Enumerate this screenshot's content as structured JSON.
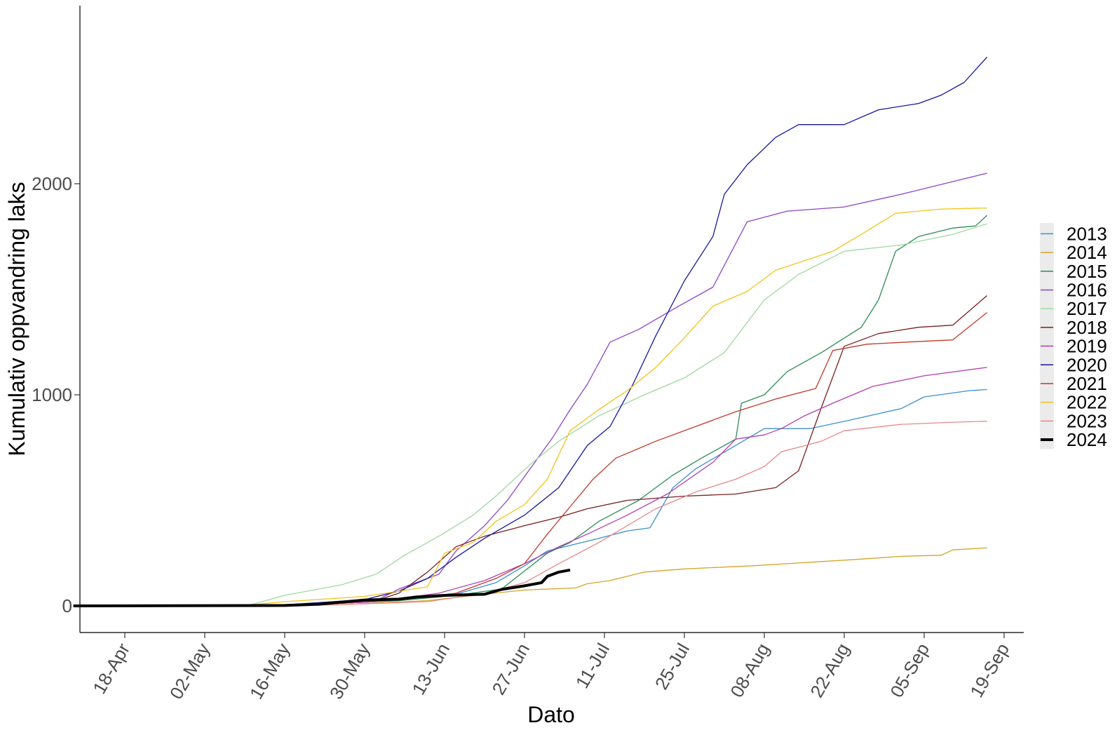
{
  "chart_data": {
    "type": "line",
    "xlabel": "Dato",
    "ylabel": "Kumulativ oppvandring laks",
    "x_tick_labels": [
      "18-Apr",
      "02-May",
      "16-May",
      "30-May",
      "13-Jun",
      "27-Jun",
      "11-Jul",
      "25-Jul",
      "08-Aug",
      "22-Aug",
      "05-Sep",
      "19-Sep"
    ],
    "x_tick_dates": [
      "04-18",
      "05-02",
      "05-16",
      "05-30",
      "06-13",
      "06-27",
      "07-11",
      "07-25",
      "08-08",
      "08-22",
      "09-05",
      "09-19"
    ],
    "y_ticks": [
      0,
      1000,
      2000
    ],
    "xlim": [
      "04-09",
      "09-19"
    ],
    "ylim": [
      -130,
      2850
    ],
    "grid": false,
    "legend_position": "right",
    "series": [
      {
        "name": "2013",
        "color": "#3b8fd0",
        "width": 1.3,
        "points": [
          [
            "04-09",
            0
          ],
          [
            "05-20",
            5
          ],
          [
            "06-05",
            25
          ],
          [
            "06-15",
            55
          ],
          [
            "06-22",
            110
          ],
          [
            "06-27",
            190
          ],
          [
            "07-01",
            260
          ],
          [
            "07-10",
            320
          ],
          [
            "07-15",
            355
          ],
          [
            "07-19",
            370
          ],
          [
            "07-23",
            560
          ],
          [
            "07-27",
            650
          ],
          [
            "08-03",
            760
          ],
          [
            "08-08",
            840
          ],
          [
            "08-16",
            840
          ],
          [
            "08-23",
            880
          ],
          [
            "09-01",
            935
          ],
          [
            "09-05",
            990
          ],
          [
            "09-13",
            1020
          ],
          [
            "09-16",
            1025
          ]
        ]
      },
      {
        "name": "2014",
        "color": "#d4a52c",
        "width": 1.3,
        "points": [
          [
            "04-09",
            0
          ],
          [
            "05-25",
            5
          ],
          [
            "06-10",
            25
          ],
          [
            "06-20",
            55
          ],
          [
            "06-27",
            75
          ],
          [
            "07-06",
            85
          ],
          [
            "07-08",
            105
          ],
          [
            "07-12",
            120
          ],
          [
            "07-18",
            160
          ],
          [
            "07-25",
            175
          ],
          [
            "08-06",
            190
          ],
          [
            "08-15",
            205
          ],
          [
            "08-24",
            220
          ],
          [
            "09-01",
            235
          ],
          [
            "09-08",
            240
          ],
          [
            "09-10",
            265
          ],
          [
            "09-16",
            275
          ]
        ]
      },
      {
        "name": "2015",
        "color": "#2e8b57",
        "width": 1.3,
        "points": [
          [
            "04-09",
            0
          ],
          [
            "05-20",
            5
          ],
          [
            "06-05",
            25
          ],
          [
            "06-15",
            50
          ],
          [
            "06-23",
            80
          ],
          [
            "07-01",
            250
          ],
          [
            "07-05",
            300
          ],
          [
            "07-10",
            400
          ],
          [
            "07-17",
            500
          ],
          [
            "07-20",
            560
          ],
          [
            "07-23",
            620
          ],
          [
            "07-28",
            700
          ],
          [
            "08-03",
            790
          ],
          [
            "08-04",
            960
          ],
          [
            "08-08",
            1000
          ],
          [
            "08-12",
            1110
          ],
          [
            "08-18",
            1200
          ],
          [
            "08-25",
            1320
          ],
          [
            "08-28",
            1450
          ],
          [
            "08-31",
            1680
          ],
          [
            "09-04",
            1750
          ],
          [
            "09-10",
            1790
          ],
          [
            "09-14",
            1800
          ],
          [
            "09-16",
            1850
          ]
        ]
      },
      {
        "name": "2016",
        "color": "#8e44c8",
        "width": 1.3,
        "points": [
          [
            "04-09",
            0
          ],
          [
            "05-20",
            5
          ],
          [
            "06-01",
            25
          ],
          [
            "06-05",
            80
          ],
          [
            "06-12",
            150
          ],
          [
            "06-15",
            260
          ],
          [
            "06-20",
            380
          ],
          [
            "06-24",
            500
          ],
          [
            "06-28",
            650
          ],
          [
            "07-02",
            800
          ],
          [
            "07-05",
            930
          ],
          [
            "07-08",
            1050
          ],
          [
            "07-12",
            1250
          ],
          [
            "07-17",
            1310
          ],
          [
            "07-24",
            1420
          ],
          [
            "07-30",
            1510
          ],
          [
            "08-05",
            1820
          ],
          [
            "08-12",
            1870
          ],
          [
            "08-22",
            1890
          ],
          [
            "09-01",
            1950
          ],
          [
            "09-10",
            2010
          ],
          [
            "09-16",
            2050
          ]
        ]
      },
      {
        "name": "2017",
        "color": "#9ed99e",
        "width": 1.3,
        "points": [
          [
            "04-09",
            0
          ],
          [
            "05-10",
            5
          ],
          [
            "05-16",
            50
          ],
          [
            "05-26",
            100
          ],
          [
            "06-01",
            150
          ],
          [
            "06-06",
            240
          ],
          [
            "06-12",
            330
          ],
          [
            "06-18",
            430
          ],
          [
            "06-22",
            520
          ],
          [
            "06-28",
            670
          ],
          [
            "07-03",
            780
          ],
          [
            "07-10",
            900
          ],
          [
            "07-18",
            1000
          ],
          [
            "07-25",
            1080
          ],
          [
            "08-01",
            1200
          ],
          [
            "08-08",
            1450
          ],
          [
            "08-14",
            1570
          ],
          [
            "08-22",
            1680
          ],
          [
            "09-01",
            1710
          ],
          [
            "09-10",
            1760
          ],
          [
            "09-16",
            1810
          ]
        ]
      },
      {
        "name": "2018",
        "color": "#7a1f1f",
        "width": 1.3,
        "points": [
          [
            "04-09",
            0
          ],
          [
            "05-20",
            5
          ],
          [
            "06-01",
            25
          ],
          [
            "06-05",
            60
          ],
          [
            "06-10",
            160
          ],
          [
            "06-15",
            280
          ],
          [
            "06-20",
            330
          ],
          [
            "06-27",
            380
          ],
          [
            "07-03",
            420
          ],
          [
            "07-08",
            460
          ],
          [
            "07-15",
            500
          ],
          [
            "07-25",
            520
          ],
          [
            "08-03",
            530
          ],
          [
            "08-10",
            560
          ],
          [
            "08-14",
            640
          ],
          [
            "08-18",
            940
          ],
          [
            "08-22",
            1230
          ],
          [
            "08-28",
            1290
          ],
          [
            "09-04",
            1320
          ],
          [
            "09-10",
            1330
          ],
          [
            "09-16",
            1470
          ]
        ]
      },
      {
        "name": "2019",
        "color": "#b23fb0",
        "width": 1.3,
        "points": [
          [
            "04-09",
            0
          ],
          [
            "05-20",
            5
          ],
          [
            "06-01",
            20
          ],
          [
            "06-12",
            60
          ],
          [
            "06-20",
            120
          ],
          [
            "06-27",
            200
          ],
          [
            "07-03",
            280
          ],
          [
            "07-08",
            340
          ],
          [
            "07-15",
            430
          ],
          [
            "07-22",
            530
          ],
          [
            "07-30",
            680
          ],
          [
            "08-03",
            790
          ],
          [
            "08-08",
            810
          ],
          [
            "08-11",
            840
          ],
          [
            "08-15",
            900
          ],
          [
            "08-20",
            960
          ],
          [
            "08-27",
            1040
          ],
          [
            "09-05",
            1090
          ],
          [
            "09-16",
            1130
          ]
        ]
      },
      {
        "name": "2020",
        "color": "#16169e",
        "width": 1.3,
        "points": [
          [
            "04-09",
            0
          ],
          [
            "05-16",
            5
          ],
          [
            "05-30",
            30
          ],
          [
            "06-05",
            70
          ],
          [
            "06-10",
            130
          ],
          [
            "06-15",
            230
          ],
          [
            "06-20",
            320
          ],
          [
            "06-27",
            430
          ],
          [
            "07-03",
            560
          ],
          [
            "07-08",
            760
          ],
          [
            "07-12",
            850
          ],
          [
            "07-16",
            1050
          ],
          [
            "07-20",
            1280
          ],
          [
            "07-25",
            1540
          ],
          [
            "07-30",
            1750
          ],
          [
            "08-01",
            1950
          ],
          [
            "08-05",
            2090
          ],
          [
            "08-10",
            2220
          ],
          [
            "08-14",
            2280
          ],
          [
            "08-22",
            2280
          ],
          [
            "08-28",
            2350
          ],
          [
            "09-04",
            2380
          ],
          [
            "09-08",
            2420
          ],
          [
            "09-12",
            2480
          ],
          [
            "09-16",
            2600
          ]
        ]
      },
      {
        "name": "2021",
        "color": "#c0392b",
        "width": 1.3,
        "points": [
          [
            "04-09",
            0
          ],
          [
            "05-20",
            5
          ],
          [
            "06-05",
            30
          ],
          [
            "06-15",
            60
          ],
          [
            "06-22",
            130
          ],
          [
            "06-27",
            200
          ],
          [
            "07-01",
            340
          ],
          [
            "07-05",
            470
          ],
          [
            "07-09",
            600
          ],
          [
            "07-13",
            700
          ],
          [
            "07-20",
            780
          ],
          [
            "07-27",
            850
          ],
          [
            "08-03",
            920
          ],
          [
            "08-10",
            980
          ],
          [
            "08-17",
            1030
          ],
          [
            "08-20",
            1210
          ],
          [
            "08-26",
            1240
          ],
          [
            "09-02",
            1250
          ],
          [
            "09-10",
            1260
          ],
          [
            "09-16",
            1390
          ]
        ]
      },
      {
        "name": "2022",
        "color": "#f2c318",
        "width": 1.3,
        "points": [
          [
            "04-09",
            0
          ],
          [
            "05-10",
            5
          ],
          [
            "05-16",
            20
          ],
          [
            "05-30",
            45
          ],
          [
            "06-10",
            90
          ],
          [
            "06-13",
            250
          ],
          [
            "06-18",
            300
          ],
          [
            "06-22",
            400
          ],
          [
            "06-27",
            480
          ],
          [
            "07-01",
            600
          ],
          [
            "07-05",
            830
          ],
          [
            "07-10",
            930
          ],
          [
            "07-15",
            1020
          ],
          [
            "07-20",
            1130
          ],
          [
            "07-25",
            1270
          ],
          [
            "07-30",
            1420
          ],
          [
            "08-05",
            1490
          ],
          [
            "08-10",
            1590
          ],
          [
            "08-20",
            1680
          ],
          [
            "08-25",
            1760
          ],
          [
            "08-31",
            1860
          ],
          [
            "09-08",
            1880
          ],
          [
            "09-16",
            1885
          ]
        ]
      },
      {
        "name": "2023",
        "color": "#e6888a",
        "width": 1.3,
        "points": [
          [
            "04-09",
            0
          ],
          [
            "05-25",
            5
          ],
          [
            "06-10",
            20
          ],
          [
            "06-20",
            60
          ],
          [
            "06-27",
            110
          ],
          [
            "07-03",
            200
          ],
          [
            "07-10",
            300
          ],
          [
            "07-15",
            380
          ],
          [
            "07-20",
            460
          ],
          [
            "07-27",
            540
          ],
          [
            "08-03",
            600
          ],
          [
            "08-08",
            660
          ],
          [
            "08-11",
            730
          ],
          [
            "08-18",
            780
          ],
          [
            "08-22",
            830
          ],
          [
            "09-01",
            860
          ],
          [
            "09-10",
            870
          ],
          [
            "09-16",
            875
          ]
        ]
      },
      {
        "name": "2024",
        "color": "#000000",
        "width": 4,
        "points": [
          [
            "04-09",
            0
          ],
          [
            "05-16",
            2
          ],
          [
            "05-22",
            8
          ],
          [
            "05-26",
            18
          ],
          [
            "05-30",
            28
          ],
          [
            "06-05",
            32
          ],
          [
            "06-08",
            42
          ],
          [
            "06-13",
            50
          ],
          [
            "06-20",
            55
          ],
          [
            "06-23",
            78
          ],
          [
            "06-27",
            95
          ],
          [
            "06-30",
            110
          ],
          [
            "07-01",
            140
          ],
          [
            "07-03",
            160
          ],
          [
            "07-05",
            170
          ]
        ]
      }
    ]
  }
}
